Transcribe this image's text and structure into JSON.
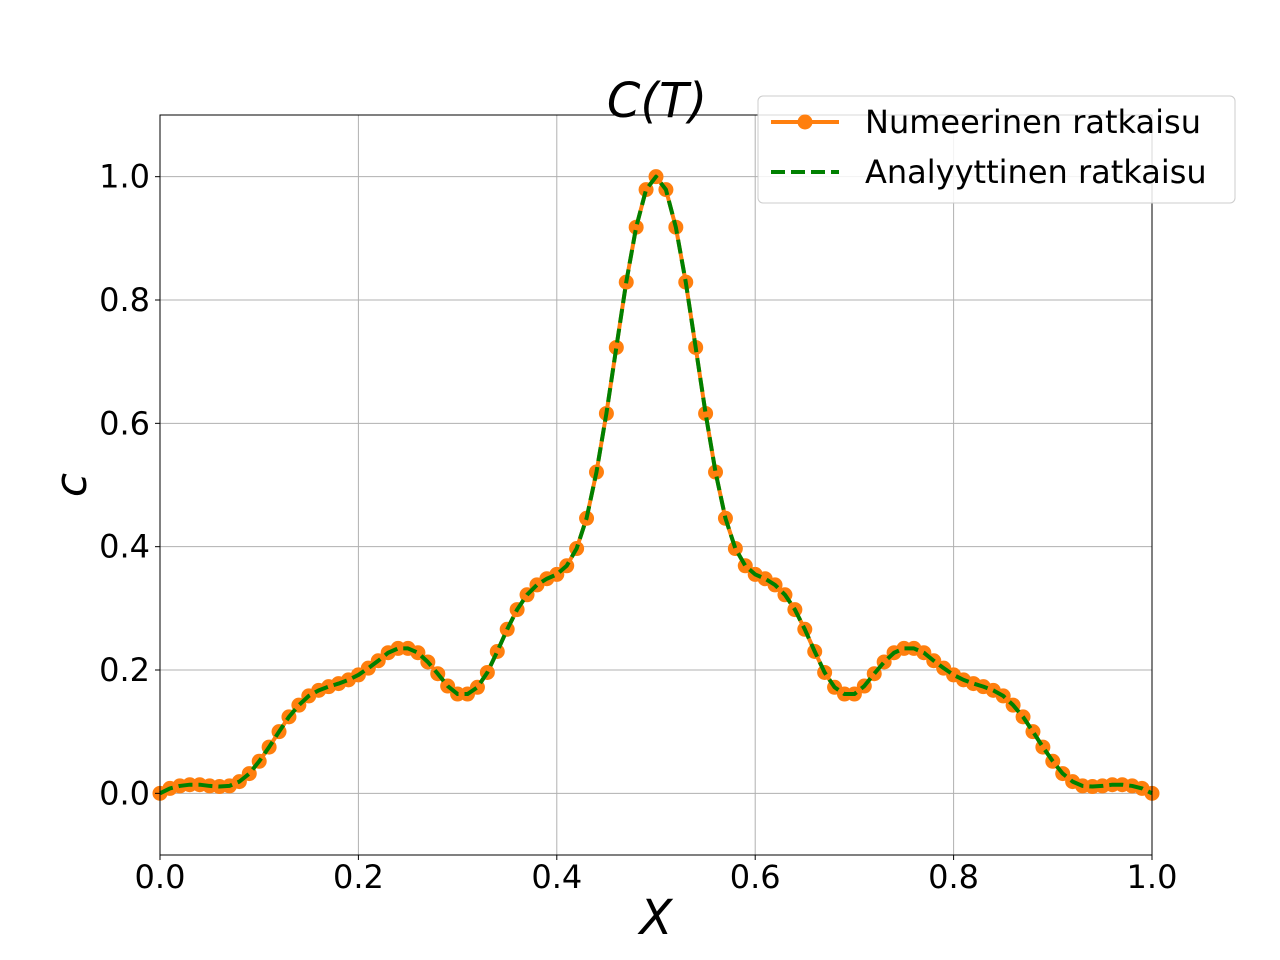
{
  "chart_data": {
    "type": "line",
    "title": "C(T)",
    "xlabel": "X",
    "ylabel": "c",
    "xlim": [
      0.0,
      1.0
    ],
    "ylim": [
      -0.1,
      1.1
    ],
    "grid": true,
    "legend_placement": "top-right",
    "x_ticks": [
      "0.0",
      "0.2",
      "0.4",
      "0.6",
      "0.8",
      "1.0"
    ],
    "y_ticks": [
      "0.0",
      "0.2",
      "0.4",
      "0.6",
      "0.8",
      "1.0"
    ],
    "x_tick_values": [
      0.0,
      0.2,
      0.4,
      0.6,
      0.8,
      1.0
    ],
    "y_tick_values": [
      0.0,
      0.2,
      0.4,
      0.6,
      0.8,
      1.0
    ],
    "x": [
      0.0,
      0.01,
      0.02,
      0.03,
      0.04,
      0.05,
      0.06,
      0.07,
      0.08,
      0.09,
      0.1,
      0.11,
      0.12,
      0.13,
      0.14,
      0.15,
      0.16,
      0.17,
      0.18,
      0.19,
      0.2,
      0.21,
      0.22,
      0.23,
      0.24,
      0.25,
      0.26,
      0.27,
      0.28,
      0.29,
      0.3,
      0.31,
      0.32,
      0.33,
      0.34,
      0.35,
      0.36,
      0.37,
      0.38,
      0.39,
      0.4,
      0.41,
      0.42,
      0.43,
      0.44,
      0.45,
      0.46,
      0.47,
      0.48,
      0.49,
      0.5,
      0.51,
      0.52,
      0.53,
      0.54,
      0.55,
      0.56,
      0.57,
      0.58,
      0.59,
      0.6,
      0.61,
      0.62,
      0.63,
      0.64,
      0.65,
      0.66,
      0.67,
      0.68,
      0.69,
      0.7,
      0.71,
      0.72,
      0.73,
      0.74,
      0.75,
      0.76,
      0.77,
      0.78,
      0.79,
      0.8,
      0.81,
      0.82,
      0.83,
      0.84,
      0.85,
      0.86,
      0.87,
      0.88,
      0.89,
      0.9,
      0.91,
      0.92,
      0.93,
      0.94,
      0.95,
      0.96,
      0.97,
      0.98,
      0.99,
      1.0
    ],
    "series": [
      {
        "name": "Numeerinen ratkaisu",
        "color": "#ff7f0e",
        "style": "solid-with-markers",
        "values": [
          0.0,
          0.008,
          0.012,
          0.014,
          0.014,
          0.012,
          0.011,
          0.012,
          0.019,
          0.032,
          0.052,
          0.075,
          0.1,
          0.124,
          0.143,
          0.158,
          0.167,
          0.173,
          0.178,
          0.184,
          0.192,
          0.203,
          0.215,
          0.228,
          0.235,
          0.235,
          0.228,
          0.213,
          0.194,
          0.174,
          0.161,
          0.161,
          0.172,
          0.196,
          0.23,
          0.266,
          0.298,
          0.322,
          0.338,
          0.348,
          0.355,
          0.369,
          0.397,
          0.446,
          0.521,
          0.616,
          0.723,
          0.829,
          0.918,
          0.979,
          1.0,
          0.979,
          0.918,
          0.829,
          0.723,
          0.616,
          0.521,
          0.446,
          0.397,
          0.369,
          0.355,
          0.348,
          0.338,
          0.322,
          0.298,
          0.266,
          0.23,
          0.196,
          0.172,
          0.161,
          0.161,
          0.174,
          0.194,
          0.213,
          0.228,
          0.235,
          0.235,
          0.228,
          0.215,
          0.203,
          0.192,
          0.184,
          0.178,
          0.173,
          0.167,
          0.158,
          0.143,
          0.124,
          0.1,
          0.075,
          0.052,
          0.032,
          0.019,
          0.012,
          0.011,
          0.012,
          0.014,
          0.014,
          0.012,
          0.008,
          0.0
        ]
      },
      {
        "name": "Analyyttinen ratkaisu",
        "color": "#008000",
        "style": "dashed",
        "values": [
          0.0,
          0.008,
          0.012,
          0.014,
          0.014,
          0.012,
          0.011,
          0.012,
          0.019,
          0.032,
          0.052,
          0.075,
          0.1,
          0.124,
          0.143,
          0.158,
          0.167,
          0.173,
          0.178,
          0.184,
          0.192,
          0.203,
          0.215,
          0.228,
          0.235,
          0.235,
          0.228,
          0.213,
          0.194,
          0.174,
          0.161,
          0.161,
          0.172,
          0.196,
          0.23,
          0.266,
          0.298,
          0.322,
          0.338,
          0.348,
          0.355,
          0.369,
          0.397,
          0.446,
          0.521,
          0.616,
          0.723,
          0.829,
          0.918,
          0.979,
          1.0,
          0.979,
          0.918,
          0.829,
          0.723,
          0.616,
          0.521,
          0.446,
          0.397,
          0.369,
          0.355,
          0.348,
          0.338,
          0.322,
          0.298,
          0.266,
          0.23,
          0.196,
          0.172,
          0.161,
          0.161,
          0.174,
          0.194,
          0.213,
          0.228,
          0.235,
          0.235,
          0.228,
          0.215,
          0.203,
          0.192,
          0.184,
          0.178,
          0.173,
          0.167,
          0.158,
          0.143,
          0.124,
          0.1,
          0.075,
          0.052,
          0.032,
          0.019,
          0.012,
          0.011,
          0.012,
          0.014,
          0.014,
          0.012,
          0.008,
          0.0
        ]
      }
    ]
  }
}
